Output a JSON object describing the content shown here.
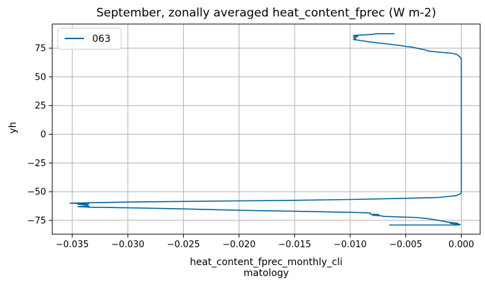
{
  "chart_data": {
    "type": "line",
    "title": "September, zonally averaged heat_content_fprec (W m-2)",
    "xlabel_lines": [
      "heat_content_fprec_monthly_cli",
      "matology"
    ],
    "ylabel": "yh",
    "xlim": [
      -0.0368,
      0.0017
    ],
    "ylim": [
      -87,
      96
    ],
    "xticks": [
      -0.035,
      -0.03,
      -0.025,
      -0.02,
      -0.015,
      -0.01,
      -0.005,
      0.0
    ],
    "xtick_labels": [
      "−0.035",
      "−0.030",
      "−0.025",
      "−0.020",
      "−0.015",
      "−0.010",
      "−0.005",
      "0.000"
    ],
    "yticks": [
      -75,
      -50,
      -25,
      0,
      25,
      50,
      75
    ],
    "ytick_labels": [
      "−75",
      "−50",
      "−25",
      "0",
      "25",
      "50",
      "75"
    ],
    "grid": true,
    "legend_position": "top-left",
    "series": [
      {
        "name": "063",
        "color": "#0066a0",
        "points": [
          [
            -0.0065,
            -79
          ],
          [
            -0.0002,
            -79
          ],
          [
            -0.0001,
            -78.5
          ],
          [
            -0.0006,
            -78
          ],
          [
            -0.001,
            -77.5
          ],
          [
            -0.0003,
            -77.5
          ],
          [
            -0.0012,
            -76.5
          ],
          [
            -0.002,
            -75
          ],
          [
            -0.003,
            -73.5
          ],
          [
            -0.004,
            -72.5
          ],
          [
            -0.0055,
            -72
          ],
          [
            -0.007,
            -71.5
          ],
          [
            -0.0072,
            -71
          ],
          [
            -0.008,
            -70.5
          ],
          [
            -0.0074,
            -70
          ],
          [
            -0.0082,
            -69.5
          ],
          [
            -0.0082,
            -68.5
          ],
          [
            -0.01,
            -68
          ],
          [
            -0.015,
            -67
          ],
          [
            -0.02,
            -66.2
          ],
          [
            -0.025,
            -65
          ],
          [
            -0.03,
            -64
          ],
          [
            -0.0335,
            -63.5
          ],
          [
            -0.0345,
            -63
          ],
          [
            -0.0335,
            -62.5
          ],
          [
            -0.0337,
            -61.5
          ],
          [
            -0.0345,
            -61
          ],
          [
            -0.0335,
            -60.5
          ],
          [
            -0.0352,
            -60
          ],
          [
            -0.03,
            -59
          ],
          [
            -0.025,
            -58.5
          ],
          [
            -0.02,
            -58
          ],
          [
            -0.015,
            -57.5
          ],
          [
            -0.01,
            -56.8
          ],
          [
            -0.005,
            -55.8
          ],
          [
            -0.002,
            -55
          ],
          [
            -0.0005,
            -53.5
          ],
          [
            -0.0001,
            -52
          ],
          [
            0.0,
            -51
          ],
          [
            0.0,
            0
          ],
          [
            0.0,
            50
          ],
          [
            0.0,
            66
          ],
          [
            -0.0001,
            67
          ],
          [
            -0.0002,
            68
          ],
          [
            -0.0004,
            69.5
          ],
          [
            -0.0008,
            70.5
          ],
          [
            -0.002,
            71.5
          ],
          [
            -0.003,
            72.5
          ],
          [
            -0.0032,
            73.5
          ],
          [
            -0.0035,
            74
          ],
          [
            -0.004,
            75
          ],
          [
            -0.0045,
            76
          ],
          [
            -0.005,
            76.5
          ],
          [
            -0.0055,
            77.3
          ],
          [
            -0.0065,
            78.5
          ],
          [
            -0.0075,
            79.5
          ],
          [
            -0.0083,
            80.5
          ],
          [
            -0.009,
            81.5
          ],
          [
            -0.0093,
            82
          ],
          [
            -0.0097,
            82.5
          ],
          [
            -0.0095,
            83.5
          ],
          [
            -0.0097,
            84.5
          ],
          [
            -0.0093,
            85
          ],
          [
            -0.0097,
            86
          ],
          [
            -0.009,
            86.5
          ],
          [
            -0.008,
            87
          ],
          [
            -0.0077,
            87.5
          ],
          [
            -0.0068,
            87.5
          ],
          [
            -0.006,
            87.5
          ]
        ]
      }
    ]
  }
}
